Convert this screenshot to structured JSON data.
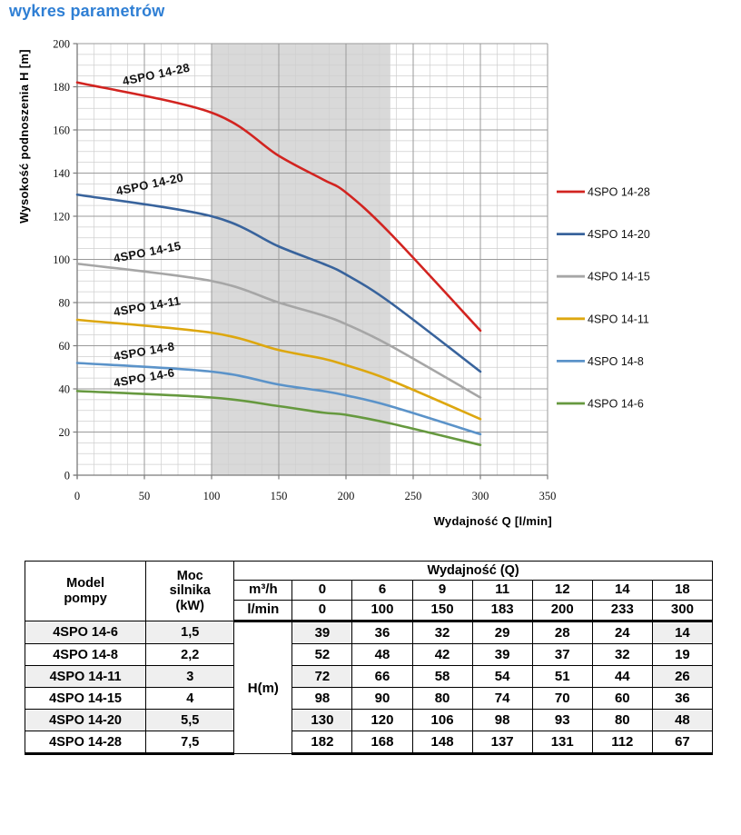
{
  "title": "wykres parametrów",
  "colors": {
    "title": "#2f7fd4",
    "chart_band": "#d9d9d9",
    "table_band": "#c9c9c9",
    "row_stripe": "#efefef",
    "grid_major": "#9a9a9a",
    "grid_minor": "#cfcfcf",
    "axis": "#7a7a7a"
  },
  "chart_data": {
    "type": "line",
    "xlabel": "Wydajność Q [l/min]",
    "ylabel": "Wysokość podnoszenia H [m]",
    "xlim": [
      0,
      350
    ],
    "ylim": [
      0,
      200
    ],
    "x_major_step": 50,
    "x_minor_step": 12.5,
    "y_major_step": 20,
    "y_minor_step": 5,
    "grid": true,
    "legend_position": "right",
    "band": {
      "from": 100,
      "to": 233,
      "color": "#d9d9d9"
    },
    "x": [
      0,
      100,
      150,
      183,
      200,
      233,
      300
    ],
    "series": [
      {
        "name": "4SPO 14-28",
        "color": "#d22420",
        "values": [
          182,
          168,
          148,
          137,
          131,
          112,
          67
        ]
      },
      {
        "name": "4SPO 14-20",
        "color": "#38639c",
        "values": [
          130,
          120,
          106,
          98,
          93,
          80,
          48
        ]
      },
      {
        "name": "4SPO 14-15",
        "color": "#a6a6a6",
        "values": [
          98,
          90,
          80,
          74,
          70,
          60,
          36
        ]
      },
      {
        "name": "4SPO 14-11",
        "color": "#dda70f",
        "values": [
          72,
          66,
          58,
          54,
          51,
          44,
          26
        ]
      },
      {
        "name": "4SPO 14-8",
        "color": "#5b93c9",
        "values": [
          52,
          48,
          42,
          39,
          37,
          32,
          19
        ]
      },
      {
        "name": "4SPO 14-6",
        "color": "#66993f",
        "values": [
          39,
          36,
          32,
          29,
          28,
          24,
          14
        ]
      }
    ]
  },
  "table": {
    "headers": {
      "model": "Model\npompy",
      "power": "Moc\nsilnika\n(kW)",
      "q_group": "Wydajność (Q)",
      "unit_m3h": "m³/h",
      "unit_lmin": "l/min",
      "h_unit": "H(m)"
    },
    "q_m3h": [
      "0",
      "6",
      "9",
      "11",
      "12",
      "14",
      "18"
    ],
    "q_lmin": [
      "0",
      "100",
      "150",
      "183",
      "200",
      "233",
      "300"
    ],
    "rows": [
      {
        "model": "4SPO 14-6",
        "power": "1,5",
        "h": [
          39,
          36,
          32,
          29,
          28,
          24,
          14
        ]
      },
      {
        "model": "4SPO 14-8",
        "power": "2,2",
        "h": [
          52,
          48,
          42,
          39,
          37,
          32,
          19
        ]
      },
      {
        "model": "4SPO 14-11",
        "power": "3",
        "h": [
          72,
          66,
          58,
          54,
          51,
          44,
          26
        ]
      },
      {
        "model": "4SPO 14-15",
        "power": "4",
        "h": [
          98,
          90,
          80,
          74,
          70,
          60,
          36
        ]
      },
      {
        "model": "4SPO 14-20",
        "power": "5,5",
        "h": [
          130,
          120,
          106,
          98,
          93,
          80,
          48
        ]
      },
      {
        "model": "4SPO 14-28",
        "power": "7,5",
        "h": [
          182,
          168,
          148,
          137,
          131,
          112,
          67
        ]
      }
    ]
  }
}
